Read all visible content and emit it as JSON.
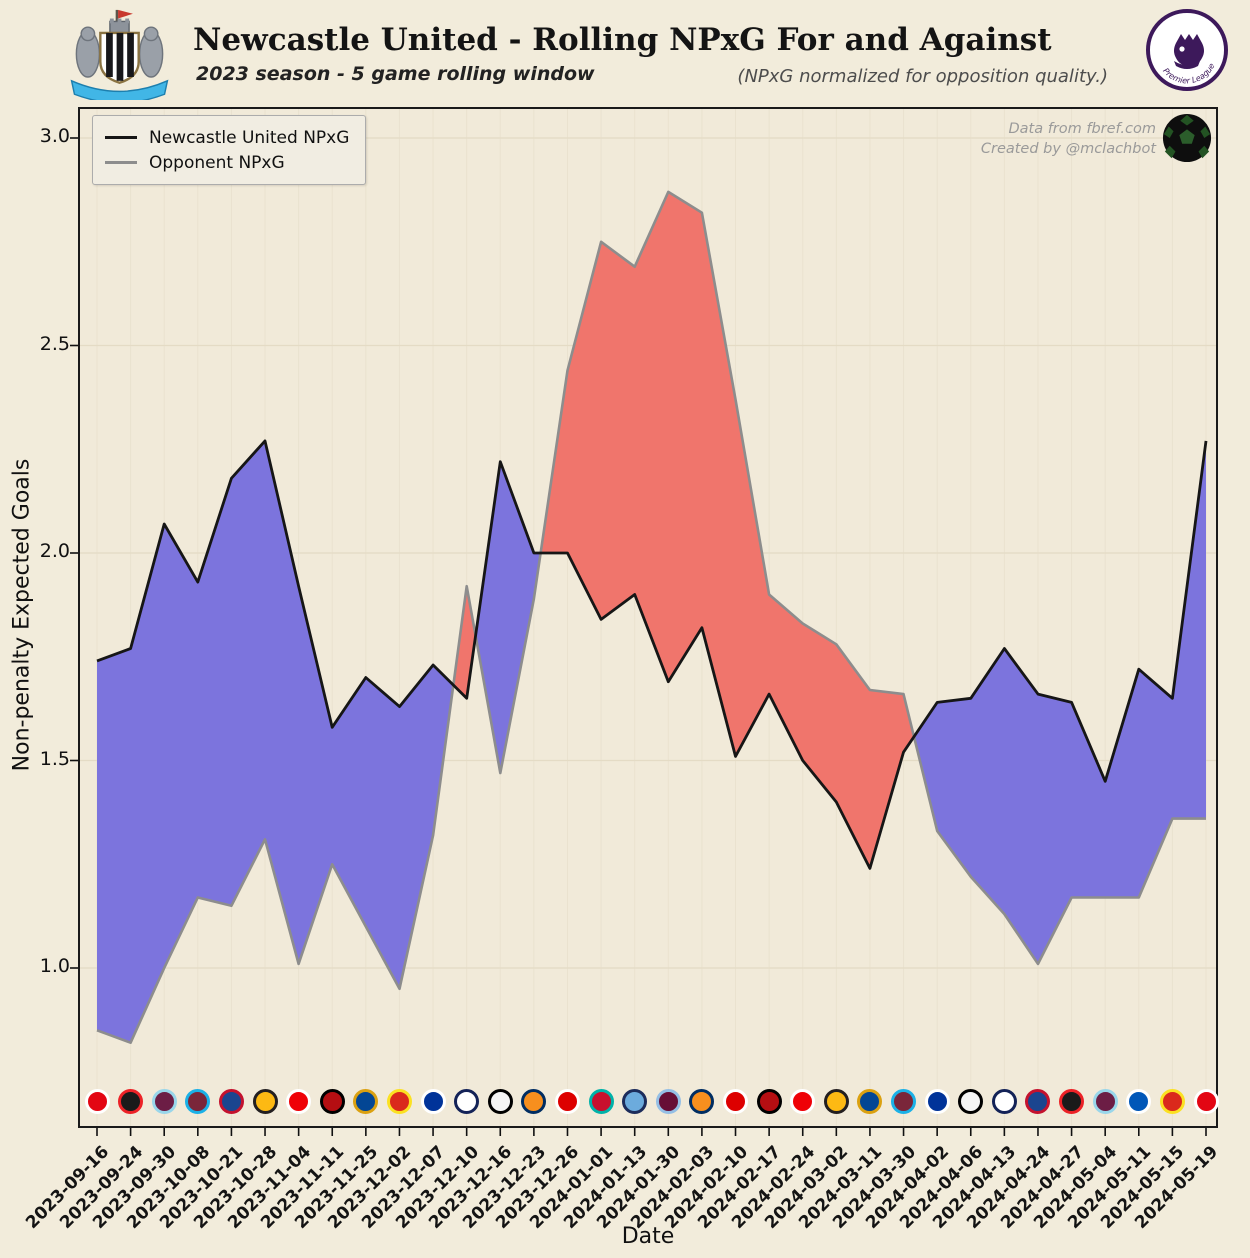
{
  "header": {
    "title": "Newcastle United - Rolling NPxG For and Against",
    "subtitle": "2023 season - 5 game rolling window",
    "note": "(NPxG normalized for opposition quality.)"
  },
  "attribution": {
    "line1": "Data from fbref.com",
    "line2": "Created by @mclachbot"
  },
  "legend": [
    {
      "label": "Newcastle United NPxG",
      "color": "#161616"
    },
    {
      "label": "Opponent NPxG",
      "color": "#8d8d8d"
    }
  ],
  "colors": {
    "background": "#f2ecdb",
    "plot_background": "#f1ead9",
    "blue_fill": "#7c74dd",
    "red_fill": "#f0756c",
    "newcastle_line": "#161616",
    "opponent_line": "#8d8d8d",
    "grid": "#e4dbc5",
    "premier_league_purple": "#3d195b",
    "newcastle_banner_cyan": "#41b6e6"
  },
  "chart_data": {
    "type": "line",
    "title": "Newcastle United - Rolling NPxG For and Against",
    "xlabel": "Date",
    "ylabel": "Non-penalty Expected Goals",
    "ylim": [
      0.61,
      3.07
    ],
    "yticks": [
      "1.0",
      "1.5",
      "2.0",
      "2.5",
      "3.0"
    ],
    "grid": true,
    "legend_position": "upper left",
    "x": [
      "2023-09-16",
      "2023-09-24",
      "2023-09-30",
      "2023-10-08",
      "2023-10-21",
      "2023-10-28",
      "2023-11-04",
      "2023-11-11",
      "2023-11-25",
      "2023-12-02",
      "2023-12-07",
      "2023-12-10",
      "2023-12-16",
      "2023-12-23",
      "2023-12-26",
      "2024-01-01",
      "2024-01-13",
      "2024-01-30",
      "2024-02-03",
      "2024-02-10",
      "2024-02-17",
      "2024-02-24",
      "2024-03-02",
      "2024-03-11",
      "2024-03-30",
      "2024-04-02",
      "2024-04-06",
      "2024-04-13",
      "2024-04-24",
      "2024-04-27",
      "2024-05-04",
      "2024-05-11",
      "2024-05-15",
      "2024-05-19"
    ],
    "series": [
      {
        "name": "Newcastle United NPxG",
        "color": "#161616",
        "values": [
          1.74,
          1.77,
          2.07,
          1.93,
          2.18,
          2.27,
          1.92,
          1.58,
          1.7,
          1.63,
          1.73,
          1.65,
          2.22,
          2.0,
          2.0,
          1.84,
          1.9,
          1.69,
          1.82,
          1.51,
          1.66,
          1.5,
          1.4,
          1.24,
          1.52,
          1.64,
          1.65,
          1.77,
          1.66,
          1.64,
          1.45,
          1.72,
          1.65,
          2.27
        ]
      },
      {
        "name": "Opponent NPxG",
        "color": "#8d8d8d",
        "values": [
          0.85,
          0.82,
          1.0,
          1.17,
          1.15,
          1.31,
          1.01,
          1.25,
          1.1,
          0.95,
          1.32,
          1.92,
          1.47,
          1.89,
          2.44,
          2.75,
          2.69,
          2.87,
          2.82,
          2.37,
          1.9,
          1.83,
          1.78,
          1.67,
          1.66,
          1.33,
          1.22,
          1.13,
          1.01,
          1.17,
          1.17,
          1.17,
          1.36,
          1.36
        ]
      }
    ],
    "fill": {
      "newcastle_above_color": "#7c74dd",
      "opponent_above_color": "#f0756c"
    },
    "opponents": [
      "Brentford",
      "Sheffield United",
      "Burnley",
      "West Ham",
      "Crystal Palace",
      "Wolves",
      "Arsenal",
      "Bournemouth",
      "Chelsea",
      "Manchester United",
      "Everton",
      "Tottenham",
      "Fulham",
      "Luton Town",
      "Nottingham Forest",
      "Liverpool",
      "Manchester City",
      "Aston Villa",
      "Luton Town",
      "Nottingham Forest",
      "Bournemouth",
      "Arsenal",
      "Wolves",
      "Chelsea",
      "West Ham",
      "Everton",
      "Fulham",
      "Tottenham",
      "Crystal Palace",
      "Sheffield United",
      "Burnley",
      "Brighton",
      "Manchester United",
      "Brentford"
    ],
    "team_colors": {
      "Brentford": [
        "#e30613",
        "#ffffff"
      ],
      "Sheffield United": [
        "#1a1a1a",
        "#ec2227"
      ],
      "Burnley": [
        "#6c1d45",
        "#99d6ea"
      ],
      "West Ham": [
        "#7a263a",
        "#1bb1e7"
      ],
      "Crystal Palace": [
        "#1b458f",
        "#c4122e"
      ],
      "Wolves": [
        "#fdb913",
        "#231f20"
      ],
      "Arsenal": [
        "#ef0107",
        "#ffffff"
      ],
      "Bournemouth": [
        "#b50e12",
        "#000000"
      ],
      "Chelsea": [
        "#034694",
        "#dba111"
      ],
      "Manchester United": [
        "#da291c",
        "#fbe122"
      ],
      "Everton": [
        "#003399",
        "#ffffff"
      ],
      "Tottenham": [
        "#ffffff",
        "#132257"
      ],
      "Fulham": [
        "#f5f5f5",
        "#000000"
      ],
      "Luton Town": [
        "#f78f1e",
        "#002d62"
      ],
      "Nottingham Forest": [
        "#dd0000",
        "#ffffff"
      ],
      "Liverpool": [
        "#c8102e",
        "#00b2a9"
      ],
      "Manchester City": [
        "#6cabdd",
        "#1c2c5b"
      ],
      "Aston Villa": [
        "#670e36",
        "#95bfe5"
      ],
      "Brighton": [
        "#0057b8",
        "#ffffff"
      ]
    }
  }
}
